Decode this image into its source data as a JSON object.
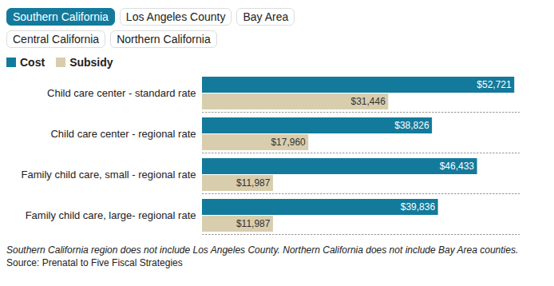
{
  "tabs": [
    "Southern California",
    "Los Angeles County",
    "Bay Area",
    "Central California",
    "Northern California"
  ],
  "selected_tab": "Southern California",
  "chart_data": {
    "type": "bar",
    "orientation": "horizontal",
    "categories": [
      "Child care center - standard rate",
      "Child care center - regional rate",
      "Family child care, small - regional rate",
      "Family child care, large- regional rate"
    ],
    "series": [
      {
        "name": "Cost",
        "color": "#137a9c",
        "values": [
          52721,
          38826,
          46433,
          39836
        ],
        "value_labels": [
          "$52,721",
          "$38,826",
          "$46,433",
          "$39,836"
        ]
      },
      {
        "name": "Subsidy",
        "color": "#d8ceae",
        "values": [
          31446,
          17960,
          11987,
          11987
        ],
        "value_labels": [
          "$31,446",
          "$17,960",
          "$11,987",
          "$11,987"
        ]
      }
    ],
    "xlim": [
      0,
      53500
    ],
    "data_labels": true,
    "tick_labels": "y",
    "grid": false,
    "legend": "top-left",
    "note": "Southern California region does not include Los Angeles County. Northern California does not include Bay Area counties.",
    "source": "Source: Prenatal to Five Fiscal Strategies"
  }
}
